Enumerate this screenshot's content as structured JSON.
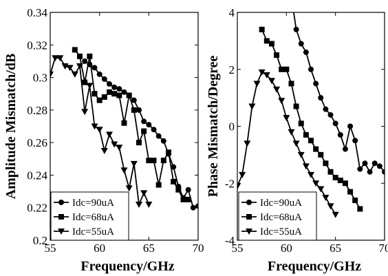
{
  "chart_data": [
    {
      "type": "line",
      "xlabel": "Frequency/GHz",
      "ylabel": "Amplitude Mismatch/dB",
      "xlim": [
        55,
        70
      ],
      "ylim": [
        0.2,
        0.34
      ],
      "xticks": [
        "55",
        "60",
        "65",
        "70"
      ],
      "yticks": [
        "0.2",
        "0.22",
        "0.24",
        "0.26",
        "0.28",
        "0.3",
        "0.32",
        "0.34"
      ],
      "legend_position": "bottom-left",
      "series": [
        {
          "name": "Idc=90uA",
          "marker": "circle",
          "points": [
            [
              58.5,
              0.31
            ],
            [
              59,
              0.308
            ],
            [
              59.5,
              0.306
            ],
            [
              60,
              0.302
            ],
            [
              60.5,
              0.299
            ],
            [
              61,
              0.296
            ],
            [
              61.5,
              0.294
            ],
            [
              62,
              0.293
            ],
            [
              62.5,
              0.291
            ],
            [
              63,
              0.289
            ],
            [
              63.5,
              0.286
            ],
            [
              64,
              0.28
            ],
            [
              64.5,
              0.273
            ],
            [
              65,
              0.271
            ],
            [
              65.5,
              0.268
            ],
            [
              66,
              0.264
            ],
            [
              66.5,
              0.261
            ],
            [
              67,
              0.253
            ],
            [
              67.5,
              0.245
            ],
            [
              68,
              0.233
            ],
            [
              68.5,
              0.226
            ],
            [
              69,
              0.231
            ],
            [
              69.5,
              0.22
            ],
            [
              70,
              0.221
            ],
            [
              70.5,
              0.215
            ]
          ]
        },
        {
          "name": "Idc=68uA",
          "marker": "square",
          "points": [
            [
              57.5,
              0.317
            ],
            [
              58,
              0.313
            ],
            [
              58.5,
              0.297
            ],
            [
              59,
              0.313
            ],
            [
              59.5,
              0.29
            ],
            [
              60,
              0.286
            ],
            [
              60.5,
              0.288
            ],
            [
              61,
              0.291
            ],
            [
              61.5,
              0.29
            ],
            [
              62,
              0.289
            ],
            [
              62.5,
              0.272
            ],
            [
              63,
              0.289
            ],
            [
              63.5,
              0.28
            ],
            [
              64,
              0.26
            ],
            [
              64.5,
              0.267
            ],
            [
              65,
              0.249
            ],
            [
              65.5,
              0.249
            ],
            [
              66,
              0.234
            ],
            [
              66.5,
              0.249
            ],
            [
              67,
              0.254
            ],
            [
              67.5,
              0.236
            ],
            [
              68,
              0.231
            ],
            [
              68.5,
              0.225
            ],
            [
              69,
              0.225
            ]
          ]
        },
        {
          "name": "Idc=55uA",
          "marker": "triangle-down",
          "points": [
            [
              55,
              0.302
            ],
            [
              55.5,
              0.312
            ],
            [
              56,
              0.312
            ],
            [
              56.5,
              0.307
            ],
            [
              57,
              0.306
            ],
            [
              57.5,
              0.302
            ],
            [
              58,
              0.307
            ],
            [
              58.5,
              0.279
            ],
            [
              59,
              0.295
            ],
            [
              59.5,
              0.27
            ],
            [
              60,
              0.268
            ],
            [
              60.5,
              0.255
            ],
            [
              61,
              0.265
            ],
            [
              61.5,
              0.259
            ],
            [
              62,
              0.257
            ],
            [
              62.5,
              0.243
            ],
            [
              63,
              0.232
            ],
            [
              63.5,
              0.247
            ],
            [
              64,
              0.222
            ],
            [
              64.5,
              0.229
            ],
            [
              65,
              0.222
            ]
          ]
        }
      ]
    },
    {
      "type": "line",
      "xlabel": "Frequency/GHz",
      "ylabel": "Phase Mismatch/Degree",
      "xlim": [
        55,
        70
      ],
      "ylim": [
        -4,
        4
      ],
      "xticks": [
        "55",
        "60",
        "65",
        "70"
      ],
      "yticks": [
        "-4",
        "-2",
        "0",
        "2",
        "4"
      ],
      "legend_position": "bottom-left",
      "series": [
        {
          "name": "Idc=90uA",
          "marker": "circle",
          "points": [
            [
              60.7,
              4.1
            ],
            [
              61,
              3.4
            ],
            [
              61.5,
              2.9
            ],
            [
              62,
              2.6
            ],
            [
              62.5,
              2.0
            ],
            [
              63,
              1.5
            ],
            [
              63.5,
              1.0
            ],
            [
              64,
              0.6
            ],
            [
              64.5,
              0.4
            ],
            [
              65,
              0.1
            ],
            [
              65.5,
              -0.3
            ],
            [
              66,
              -0.8
            ],
            [
              66.5,
              0
            ],
            [
              67,
              -0.5
            ],
            [
              67.5,
              -1.5
            ],
            [
              68,
              -1.3
            ],
            [
              68.5,
              -1.6
            ],
            [
              69,
              -1.3
            ],
            [
              69.5,
              -1.4
            ],
            [
              70,
              -1.6
            ],
            [
              70.5,
              -1.9
            ]
          ]
        },
        {
          "name": "Idc=68uA",
          "marker": "square",
          "points": [
            [
              57.5,
              3.4
            ],
            [
              58,
              3.0
            ],
            [
              58.5,
              2.9
            ],
            [
              59,
              2.5
            ],
            [
              59.5,
              2.0
            ],
            [
              60,
              2.0
            ],
            [
              60.5,
              1.5
            ],
            [
              61,
              0.7
            ],
            [
              61.5,
              0.1
            ],
            [
              62,
              -0.3
            ],
            [
              62.5,
              -0.5
            ],
            [
              63,
              -0.8
            ],
            [
              63.5,
              -1.0
            ],
            [
              64,
              -1.3
            ],
            [
              64.5,
              -1.6
            ],
            [
              65,
              -1.8
            ],
            [
              65.5,
              -1.9
            ],
            [
              66,
              -2.0
            ],
            [
              66.5,
              -2.3
            ],
            [
              67,
              -2.6
            ],
            [
              67.5,
              -2.9
            ]
          ]
        },
        {
          "name": "Idc=55uA",
          "marker": "triangle-down",
          "points": [
            [
              55,
              -2.1
            ],
            [
              55.5,
              -1.7
            ],
            [
              56,
              -0.6
            ],
            [
              56.5,
              0.7
            ],
            [
              57,
              1.5
            ],
            [
              57.5,
              1.9
            ],
            [
              58,
              1.8
            ],
            [
              58.5,
              1.6
            ],
            [
              59,
              1.3
            ],
            [
              59.5,
              0.9
            ],
            [
              60,
              0.3
            ],
            [
              60.5,
              -0.2
            ],
            [
              61,
              -0.6
            ],
            [
              61.5,
              -1.0
            ],
            [
              62,
              -1.4
            ],
            [
              62.5,
              -1.7
            ],
            [
              63,
              -2.0
            ],
            [
              63.5,
              -2.2
            ],
            [
              64,
              -2.5
            ],
            [
              64.5,
              -2.8
            ],
            [
              65,
              -3.1
            ]
          ]
        }
      ]
    }
  ]
}
